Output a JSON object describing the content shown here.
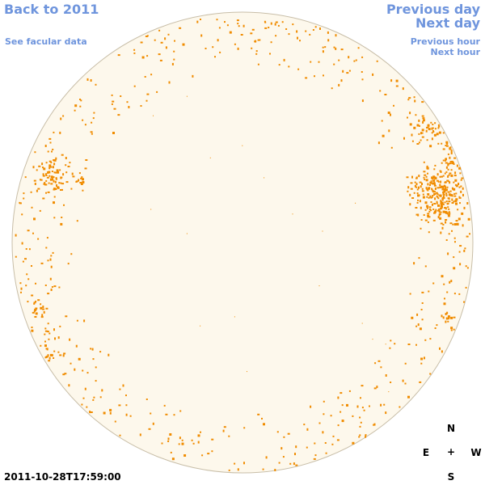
{
  "nav": {
    "back_label": "Back to 2011",
    "facular_label": "See facular data",
    "prev_day_label": "Previous day",
    "next_day_label": "Next day",
    "prev_hour_label": "Previous hour",
    "next_hour_label": "Next hour"
  },
  "timestamp": "2011-10-28T17:59:00",
  "compass": {
    "north": "N",
    "south": "S",
    "east": "E",
    "west": "W",
    "center": "+"
  },
  "colors": {
    "link": "#6f95dd",
    "disk_fill": "#fdf8ec",
    "disk_edge": "#c8bea8",
    "facula": "#f08c00"
  }
}
